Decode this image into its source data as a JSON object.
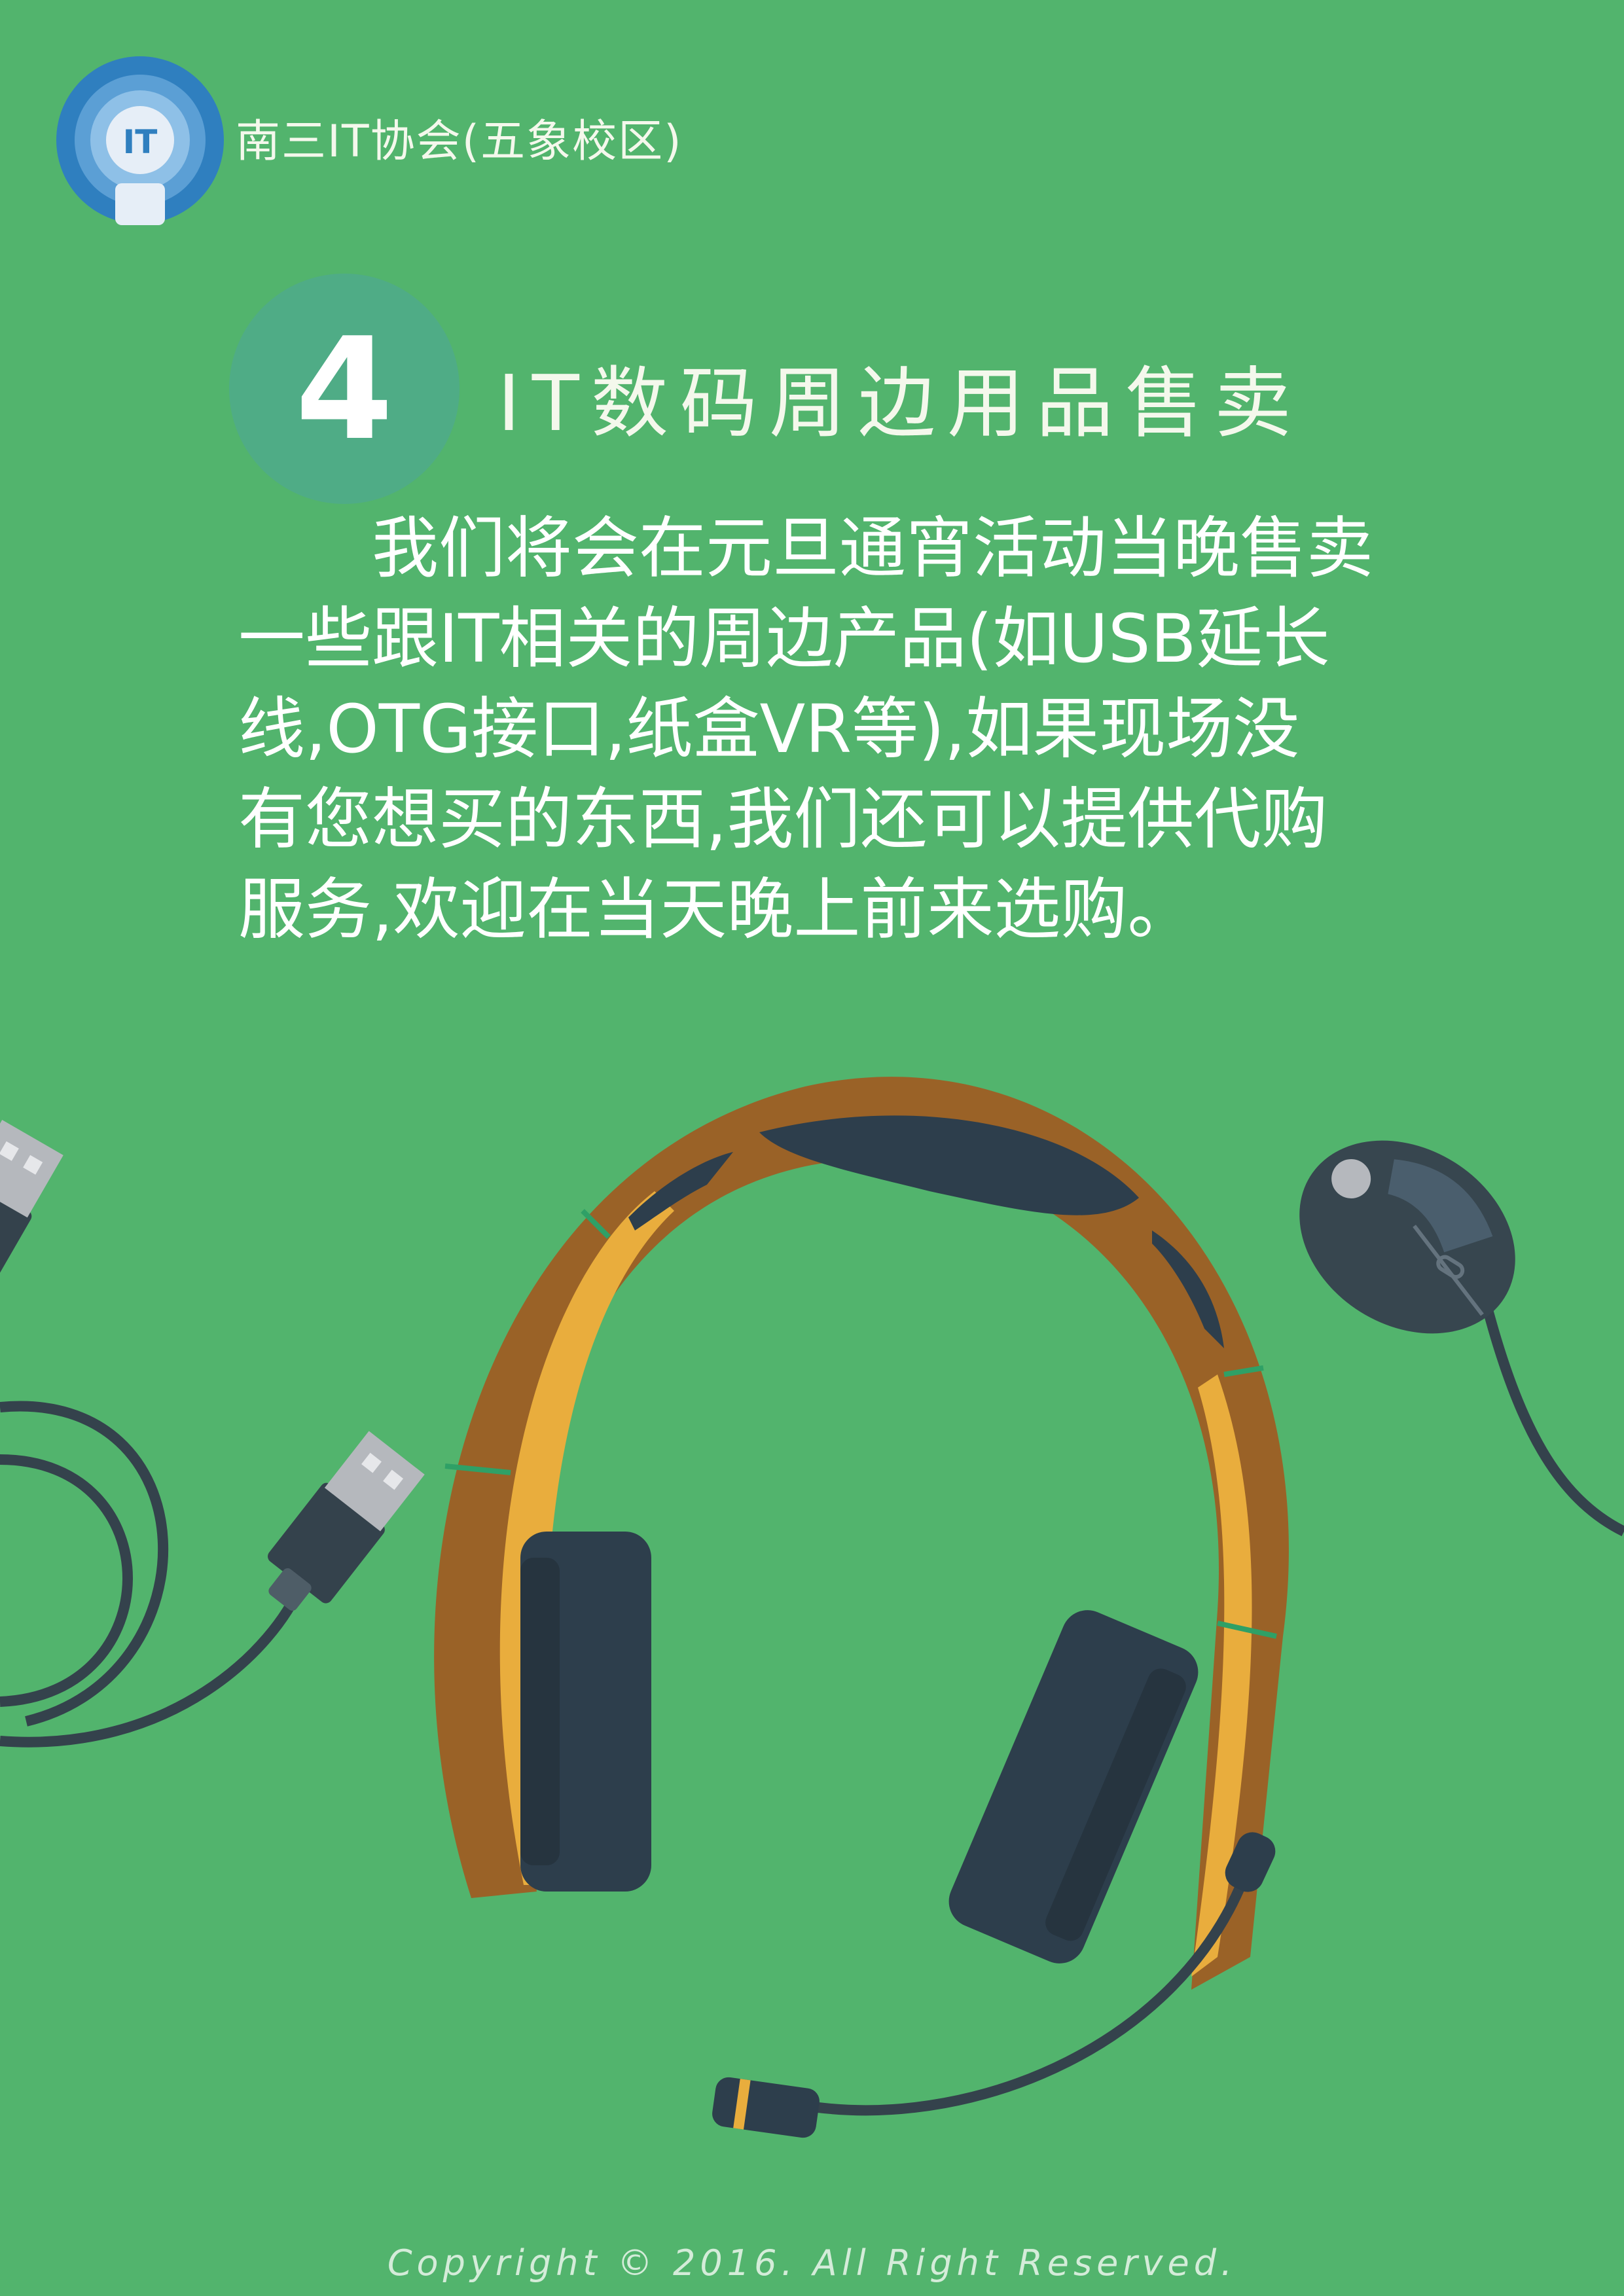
{
  "header": {
    "logo_text": "IT",
    "org_name": "南三IT协会(五象校区)"
  },
  "section": {
    "number": "4",
    "title": "IT数码周边用品售卖"
  },
  "body": {
    "lines": [
      "　　我们将会在元旦通宵活动当晚售卖",
      "一些跟IT相关的周边产品(如USB延长",
      "线,OTG接口,纸盒VR等),如果现场没",
      "有您想买的东西,我们还可以提供代购",
      "服务,欢迎在当天晚上前来选购。"
    ]
  },
  "illustration": {
    "items": [
      "usb-cable-icon",
      "headset-icon",
      "mouse-icon"
    ],
    "colors": {
      "headband": "#9a6227",
      "headband_highlight": "#e9ad3d",
      "earcup": "#2d3e4c",
      "usb_metal": "#b5b8bd",
      "mouse": "#37464f",
      "accent_green": "#2fa066"
    }
  },
  "footer": {
    "copyright": "Copyright © 2016. All Right Reserved."
  }
}
